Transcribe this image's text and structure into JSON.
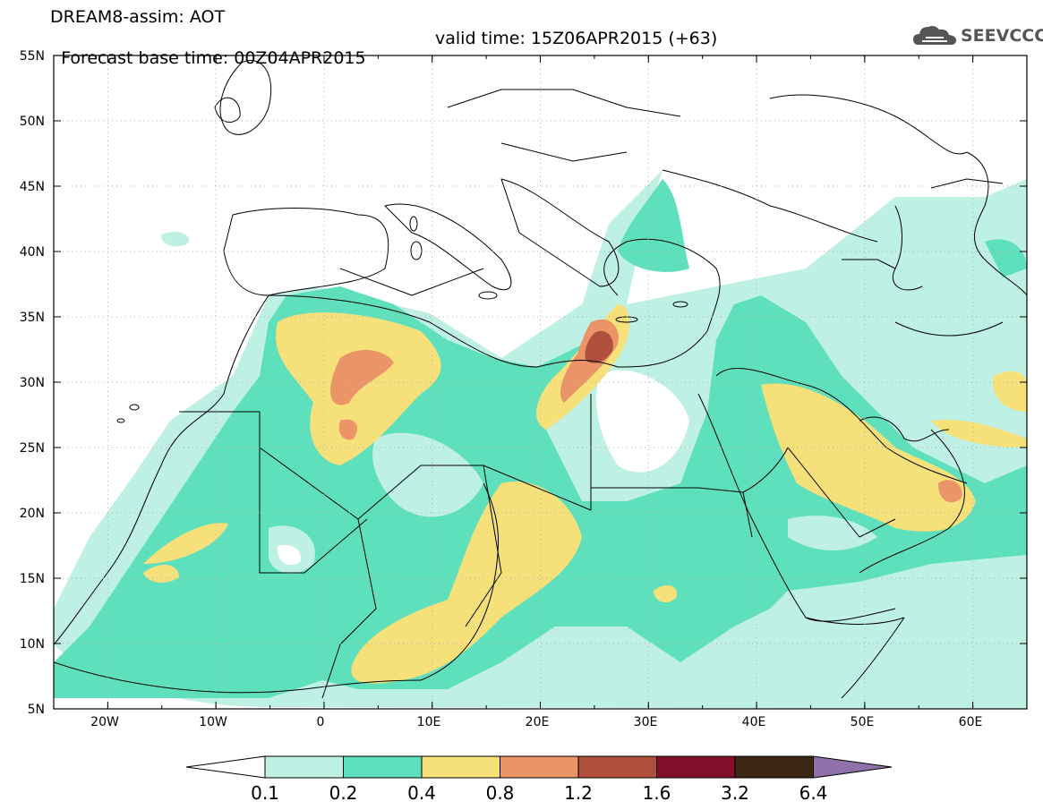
{
  "header": {
    "model_title": "DREAM8-assim: AOT",
    "base_time": "Forecast base time: 00Z04APR2015",
    "valid_time": "valid time: 15Z06APR2015 (+63)",
    "logo_text": "SEEVCCC"
  },
  "map": {
    "lon_range": [
      -25,
      65
    ],
    "lat_range": [
      5,
      55
    ],
    "lat_ticks": [
      "55N",
      "50N",
      "45N",
      "40N",
      "35N",
      "30N",
      "25N",
      "20N",
      "15N",
      "10N",
      "5N"
    ],
    "lon_ticks": [
      "20W",
      "10W",
      "0",
      "10E",
      "20E",
      "30E",
      "40E",
      "50E",
      "60E"
    ],
    "grid_lines": "dotted"
  },
  "colorbar": {
    "levels": [
      "0.1",
      "0.2",
      "0.4",
      "0.8",
      "1.2",
      "1.6",
      "3.2",
      "6.4"
    ],
    "colors": [
      "#ffffff",
      "#bff0e4",
      "#5fe0bd",
      "#f5e07a",
      "#eb9468",
      "#b0503c",
      "#80102a",
      "#3c2616",
      "#9070a8"
    ]
  }
}
